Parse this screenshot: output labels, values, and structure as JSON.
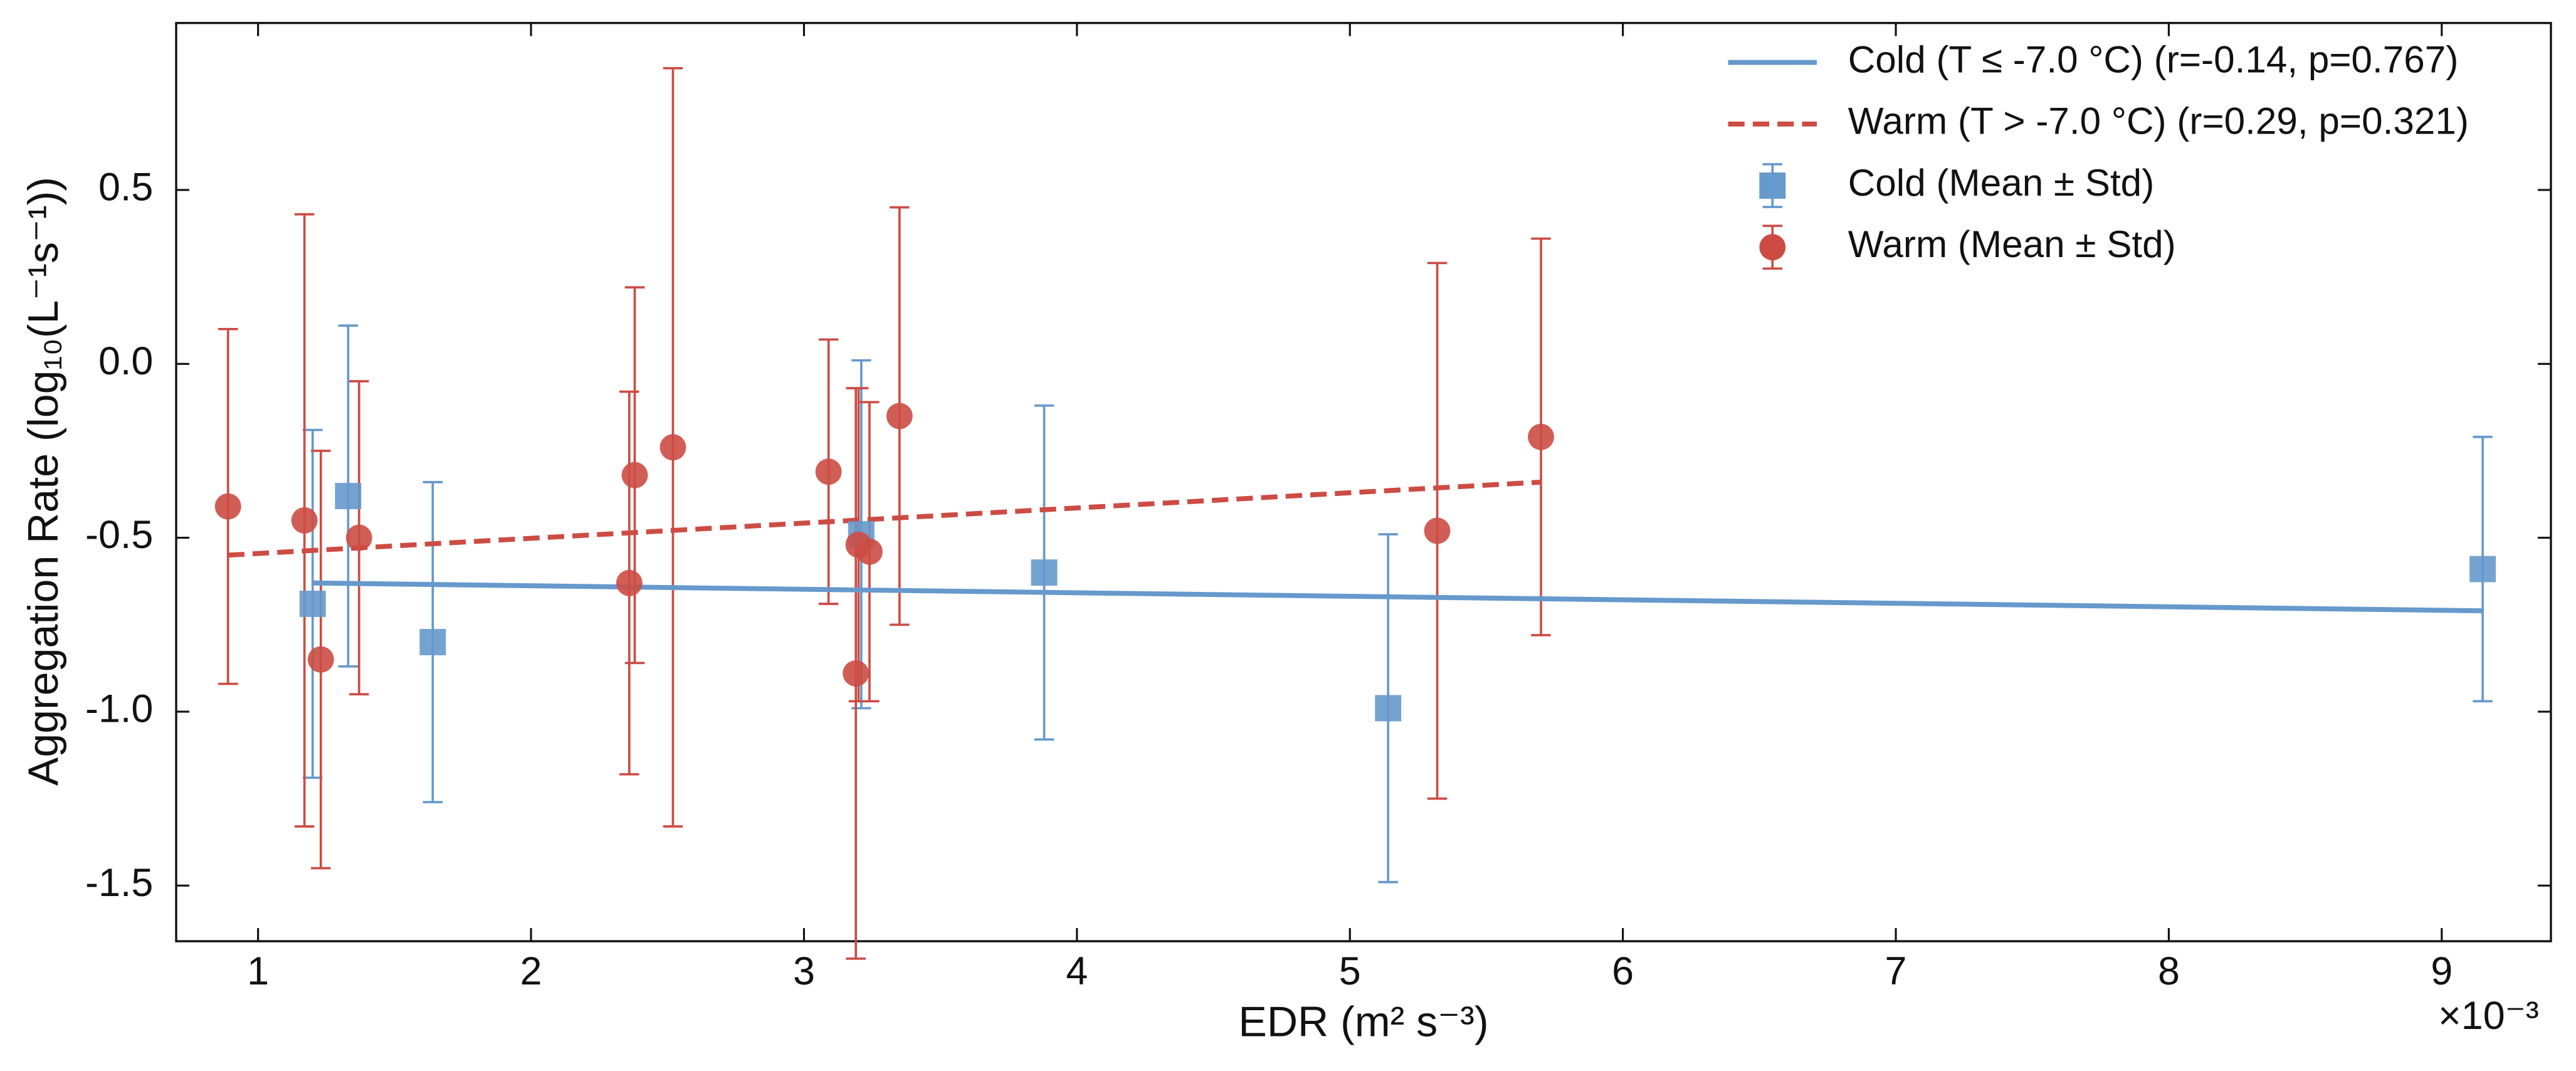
{
  "chart_data": {
    "type": "scatter",
    "xlabel": "EDR (m² s⁻³)",
    "ylabel": "Aggregation Rate (log₁₀(L⁻¹s⁻¹))",
    "x_offset_label": "×10⁻³",
    "xlim": [
      0.7,
      9.4
    ],
    "ylim": [
      -1.66,
      0.98
    ],
    "xticks": [
      1,
      2,
      3,
      4,
      5,
      6,
      7,
      8,
      9
    ],
    "yticks": [
      0.5,
      {
        "value": 0,
        "label": "0.0"
      },
      -0.5,
      {
        "value": -1,
        "label": "-1.0"
      },
      -1.5
    ],
    "legend": "upper right",
    "fits": [
      {
        "name": "Cold (T ≤ -7.0 °C) (r=-0.14, p=0.767)",
        "color": "#6699cc",
        "dashed": false,
        "x": [
          1.2,
          9.15
        ],
        "values": [
          -0.63,
          -0.71
        ]
      },
      {
        "name": "Warm (T > -7.0 °C) (r=0.29, p=0.321)",
        "color": "#cc4c44",
        "dashed": true,
        "x": [
          0.89,
          5.7
        ],
        "values": [
          -0.55,
          -0.34
        ]
      }
    ],
    "series": [
      {
        "name": "Cold (Mean ± Std)",
        "color": "#6699cc",
        "marker": "square",
        "x": [
          1.2,
          1.33,
          1.64,
          3.21,
          3.88,
          5.14,
          9.15
        ],
        "values": [
          -0.69,
          -0.38,
          -0.8,
          -0.49,
          -0.6,
          -0.99,
          -0.59
        ],
        "errors": [
          0.5,
          0.49,
          0.46,
          0.5,
          0.48,
          0.5,
          0.38
        ]
      },
      {
        "name": "Warm (Mean ± Std)",
        "color": "#cc4c44",
        "marker": "circle",
        "x": [
          0.89,
          1.17,
          1.23,
          1.37,
          2.36,
          2.38,
          2.52,
          3.09,
          3.19,
          3.2,
          3.24,
          3.35,
          5.32,
          5.7
        ],
        "values": [
          -0.41,
          -0.45,
          -0.85,
          -0.5,
          -0.63,
          -0.32,
          -0.24,
          -0.31,
          -0.89,
          -0.52,
          -0.54,
          -0.15,
          -0.48,
          -0.21
        ],
        "errors": [
          0.51,
          0.88,
          0.6,
          0.45,
          0.55,
          0.54,
          1.09,
          0.38,
          0.82,
          0.45,
          0.43,
          0.6,
          0.77,
          0.57
        ]
      }
    ]
  }
}
